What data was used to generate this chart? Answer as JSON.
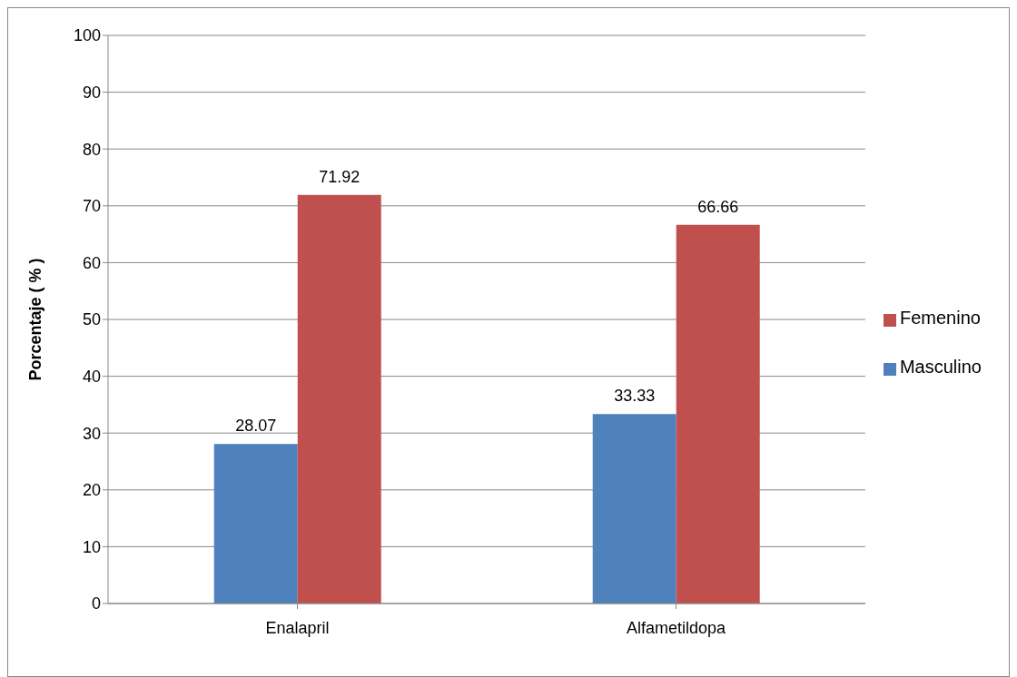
{
  "chart_data": {
    "type": "bar",
    "ylabel": "Porcentaje ( % )",
    "categories": [
      "Enalapril",
      "Alfametildopa"
    ],
    "series": [
      {
        "name": "Masculino",
        "color": "#4f81bd",
        "values": [
          28.07,
          33.33
        ]
      },
      {
        "name": "Femenino",
        "color": "#c0504d",
        "values": [
          71.92,
          66.66
        ]
      }
    ],
    "ylim": [
      0,
      100
    ],
    "yticks": [
      0,
      10,
      20,
      30,
      40,
      50,
      60,
      70,
      80,
      90,
      100
    ],
    "grid": "y",
    "legend": "right",
    "data_labels": true
  }
}
